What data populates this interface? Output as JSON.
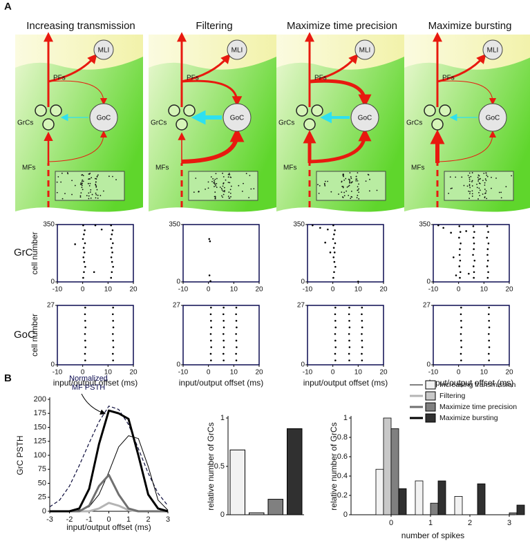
{
  "panel_labels": [
    "A",
    "B"
  ],
  "column_titles": [
    "Increasing transmission",
    "Filtering",
    "Maximize time precision",
    "Maximize bursting"
  ],
  "diagram_labels": {
    "mli": "MLI",
    "pfs": "PFs",
    "goc": "GoC",
    "grcs": "GrCs",
    "mfs": "MFs"
  },
  "row_labels": [
    "GrC",
    "GoC"
  ],
  "chart_data": [
    {
      "type": "scatter",
      "ylabel": "cell number",
      "xlim": [
        -10,
        20
      ],
      "xticks": [
        -10,
        0,
        10,
        20
      ],
      "ylim": [
        0,
        350
      ],
      "yticks": [
        0,
        350
      ],
      "x": [
        0.2,
        0.8,
        0.5,
        0.1,
        0.9,
        0.4,
        0.7,
        0.3,
        0.6,
        1.0,
        0.5,
        0.2,
        11.2,
        11.8,
        11.5,
        11.1,
        11.9,
        11.4,
        11.7,
        11.3,
        11.6,
        12.0,
        11.5,
        11.2,
        -3,
        5,
        7.5,
        4.5
      ],
      "y": [
        345,
        315,
        290,
        262,
        236,
        208,
        180,
        150,
        122,
        92,
        60,
        25,
        345,
        315,
        290,
        262,
        236,
        208,
        180,
        150,
        122,
        92,
        60,
        25,
        230,
        345,
        320,
        60
      ]
    },
    {
      "type": "scatter",
      "xlim": [
        -10,
        20
      ],
      "xticks": [
        -10,
        0,
        10,
        20
      ],
      "ylim": [
        0,
        350
      ],
      "yticks": [
        0,
        350
      ],
      "x": [
        0.3,
        0.6,
        0.4,
        0.8
      ],
      "y": [
        262,
        248,
        40,
        5
      ]
    },
    {
      "type": "scatter",
      "xlim": [
        -10,
        20
      ],
      "xticks": [
        -10,
        0,
        10,
        20
      ],
      "ylim": [
        0,
        350
      ],
      "yticks": [
        0,
        350
      ],
      "x": [
        0.2,
        0.8,
        0.5,
        0.1,
        0.9,
        0.4,
        0.7,
        0.3,
        0.6,
        1.0,
        0.5,
        0.2,
        -8,
        -5,
        -3,
        -2,
        -1,
        10
      ],
      "y": [
        345,
        315,
        290,
        262,
        236,
        208,
        180,
        150,
        122,
        92,
        60,
        25,
        345,
        330,
        240,
        320,
        180,
        2
      ]
    },
    {
      "type": "scatter",
      "xlim": [
        -10,
        20
      ],
      "xticks": [
        -10,
        0,
        10,
        20
      ],
      "ylim": [
        0,
        350
      ],
      "yticks": [
        0,
        350
      ],
      "x": [
        0.3,
        0.7,
        0.2,
        0.8,
        0.5,
        0.4,
        0.6,
        0.3,
        0.7,
        0.5,
        5.8,
        6.2,
        5.9,
        6.1,
        6.0,
        5.7,
        6.3,
        5.9,
        6.1,
        6.0,
        11.3,
        11.7,
        11.2,
        11.8,
        11.5,
        11.4,
        11.6,
        11.3,
        11.7,
        11.5,
        -8,
        -6,
        -3,
        -2,
        -1,
        3,
        4
      ],
      "y": [
        340,
        305,
        270,
        235,
        200,
        165,
        130,
        95,
        60,
        25,
        340,
        305,
        270,
        235,
        200,
        165,
        130,
        95,
        60,
        25,
        340,
        305,
        270,
        235,
        200,
        165,
        130,
        95,
        60,
        25,
        345,
        330,
        300,
        150,
        40,
        310,
        50
      ]
    },
    {
      "type": "scatter",
      "ylabel": "cell number",
      "xlabel": "input/output offset (ms)",
      "xlim": [
        -10,
        20
      ],
      "xticks": [
        -10,
        0,
        10,
        20
      ],
      "ylim": [
        0,
        27
      ],
      "yticks": [
        0,
        27
      ],
      "x": [
        1.0,
        0.9,
        1.1,
        1.0,
        0.9,
        1.1,
        1.0,
        0.9,
        1.0,
        12.0,
        11.9,
        12.1,
        12.0,
        11.9,
        12.1,
        12.0,
        11.9,
        12.0
      ],
      "y": [
        2,
        5,
        8,
        11,
        14,
        17,
        20,
        23,
        26,
        2,
        5,
        8,
        11,
        14,
        17,
        20,
        23,
        26
      ]
    },
    {
      "type": "scatter",
      "xlabel": "input/output offset (ms)",
      "xlim": [
        -10,
        20
      ],
      "xticks": [
        -10,
        0,
        10,
        20
      ],
      "ylim": [
        0,
        27
      ],
      "yticks": [
        0,
        27
      ],
      "x": [
        1.0,
        0.9,
        1.1,
        1.0,
        0.9,
        1.1,
        1.0,
        0.9,
        1.0,
        6.0,
        5.9,
        6.1,
        6.0,
        5.9,
        6.1,
        6.0,
        5.9,
        6.0,
        11.0,
        10.9,
        11.1,
        11.0,
        10.9,
        11.1,
        11.0,
        10.9,
        11.0
      ],
      "y": [
        2,
        5,
        8,
        11,
        14,
        17,
        20,
        23,
        26,
        2,
        5,
        8,
        11,
        14,
        17,
        20,
        23,
        26,
        2,
        5,
        8,
        11,
        14,
        17,
        20,
        23,
        26
      ]
    },
    {
      "type": "scatter",
      "xlabel": "input/output offset (ms)",
      "xlim": [
        -10,
        20
      ],
      "xticks": [
        -10,
        0,
        10,
        20
      ],
      "ylim": [
        0,
        27
      ],
      "yticks": [
        0,
        27
      ],
      "x": [
        1.0,
        0.9,
        1.1,
        1.0,
        0.9,
        1.1,
        1.0,
        0.9,
        1.0,
        6.5,
        6.4,
        6.6,
        6.5,
        6.4,
        6.6,
        6.5,
        6.4,
        6.5,
        11.5,
        11.4,
        11.6,
        11.5,
        11.4,
        11.6,
        11.5,
        11.4,
        11.5
      ],
      "y": [
        2,
        5,
        8,
        11,
        14,
        17,
        20,
        23,
        26,
        2,
        5,
        8,
        11,
        14,
        17,
        20,
        23,
        26,
        2,
        5,
        8,
        11,
        14,
        17,
        20,
        23,
        26
      ]
    },
    {
      "type": "scatter",
      "xlabel": "input/output offset (ms)",
      "xlim": [
        -10,
        20
      ],
      "xticks": [
        -10,
        0,
        10,
        20
      ],
      "ylim": [
        0,
        27
      ],
      "yticks": [
        0,
        27
      ],
      "x": [
        1.0,
        0.9,
        1.1,
        1.0,
        0.9,
        1.1,
        1.0,
        0.9,
        1.0,
        12.0,
        11.9,
        12.1,
        12.0,
        11.9,
        12.1,
        12.0,
        11.9,
        12.0
      ],
      "y": [
        2,
        5,
        8,
        11,
        14,
        17,
        20,
        23,
        26,
        2,
        5,
        8,
        11,
        14,
        17,
        20,
        23,
        26
      ]
    },
    {
      "type": "line",
      "ylabel": "GrC PSTH",
      "xlabel": "input/output offset (ms)",
      "annotation": [
        "Normalized",
        "MF PSTH"
      ],
      "xlim": [
        -3,
        3
      ],
      "xticks": [
        -3,
        -2,
        -1,
        0,
        1,
        2,
        3
      ],
      "ylim": [
        0,
        200
      ],
      "yticks": [
        0,
        25,
        50,
        75,
        100,
        125,
        150,
        175,
        200
      ],
      "x": [
        -3,
        -2.5,
        -2,
        -1.5,
        -1,
        -0.5,
        0,
        0.5,
        1,
        1.5,
        2,
        2.5,
        3
      ],
      "reference": {
        "color": "#0a0a3a",
        "dashed": true,
        "values": [
          8,
          20,
          45,
          82,
          122,
          160,
          188,
          182,
          155,
          112,
          68,
          32,
          10
        ]
      },
      "series": [
        {
          "name": "Increasing transmission",
          "color": "#000000",
          "width": 1,
          "values": [
            0,
            0,
            0,
            2,
            8,
            30,
            70,
            115,
            135,
            130,
            80,
            20,
            2
          ]
        },
        {
          "name": "Filtering",
          "color": "#b4b4b4",
          "width": 3,
          "values": [
            0,
            0,
            0,
            0,
            0,
            5,
            15,
            10,
            2,
            0,
            0,
            0,
            0
          ]
        },
        {
          "name": "Maximize time precision",
          "color": "#707070",
          "width": 3,
          "values": [
            0,
            0,
            0,
            0,
            10,
            45,
            65,
            30,
            5,
            0,
            0,
            0,
            0
          ]
        },
        {
          "name": "Maximize bursting",
          "color": "#000000",
          "width": 3,
          "values": [
            0,
            0,
            0,
            5,
            40,
            120,
            180,
            175,
            165,
            100,
            30,
            5,
            0
          ]
        }
      ]
    },
    {
      "type": "bar",
      "ylabel": "relative number of GrCs",
      "ylim": [
        0,
        1
      ],
      "yticks": [
        0,
        0.5,
        1
      ],
      "values": [
        0.67,
        0.02,
        0.16,
        0.89
      ],
      "colors": [
        "#f2f2f2",
        "#c8c8c8",
        "#808080",
        "#303030"
      ]
    },
    {
      "type": "grouped_bar",
      "ylabel": "relative number of GrCs",
      "xlabel": "number of spikes",
      "categories": [
        0,
        1,
        2,
        3
      ],
      "ylim": [
        0,
        1
      ],
      "yticks": [
        0,
        0.2,
        0.4,
        0.6,
        0.8,
        1
      ],
      "series": [
        {
          "color": "#f2f2f2",
          "values": [
            0.47,
            0.35,
            0.19,
            0
          ]
        },
        {
          "color": "#c8c8c8",
          "values": [
            1.0,
            0,
            0,
            0
          ]
        },
        {
          "color": "#808080",
          "values": [
            0.89,
            0.12,
            0,
            0.02
          ]
        },
        {
          "color": "#303030",
          "values": [
            0.27,
            0.35,
            0.32,
            0.1
          ]
        }
      ]
    }
  ]
}
